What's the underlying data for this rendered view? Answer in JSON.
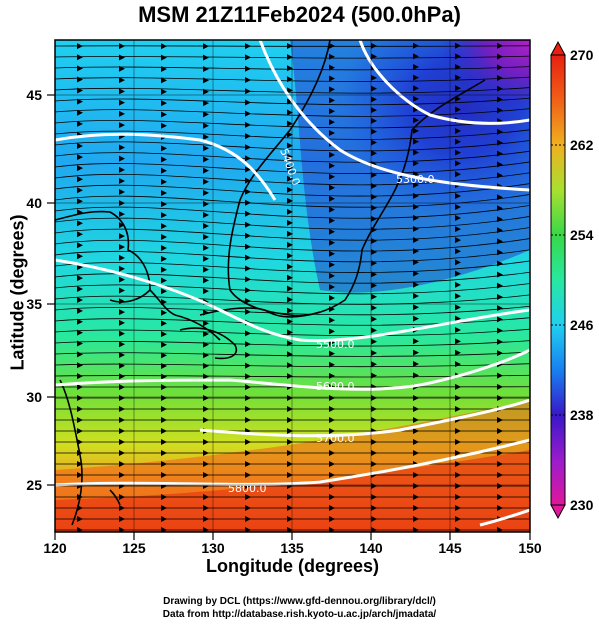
{
  "title": "MSM 21Z11Feb2024 (500.0hPa)",
  "xlabel": "Longitude (degrees)",
  "ylabel": "Latitude  (degrees)",
  "credits": {
    "line1": "Drawing by DCL (https://www.gfd-dennou.org/library/dcl/)",
    "line2": "Data from http://database.rish.kyoto-u.ac.jp/arch/jmadata/"
  },
  "x_ticks": [
    "120",
    "125",
    "130",
    "135",
    "140",
    "145",
    "150"
  ],
  "y_ticks": [
    "25",
    "30",
    "35",
    "40",
    "45"
  ],
  "colorbar": {
    "min": 230,
    "max": 270,
    "ticks": [
      "270",
      "262",
      "254",
      "246",
      "238",
      "230"
    ],
    "colors": [
      "#e0189a",
      "#9a1ccc",
      "#3818c8",
      "#1880f0",
      "#20d0f0",
      "#28e8a0",
      "#38d848",
      "#a8e030",
      "#f0b020",
      "#f06018",
      "#e82010"
    ]
  },
  "contour_labels": [
    "5300.0",
    "5400.0",
    "5500.0",
    "5600.0",
    "5700.0",
    "5800.0"
  ],
  "chart_data": {
    "type": "heatmap",
    "title": "MSM 21Z11Feb2024 (500.0hPa)",
    "xlabel": "Longitude (degrees)",
    "ylabel": "Latitude  (degrees)",
    "xlim": [
      120,
      150
    ],
    "ylim": [
      22.5,
      47.5
    ],
    "color_range": [
      230,
      270
    ],
    "colormap": "purple-blue-cyan-green-yellow-orange-red",
    "grid": true,
    "contour_field": "geopotential height",
    "contour_levels": [
      5300,
      5400,
      5500,
      5600,
      5700,
      5800
    ],
    "vectors": "wind streamlines with arrowheads"
  }
}
